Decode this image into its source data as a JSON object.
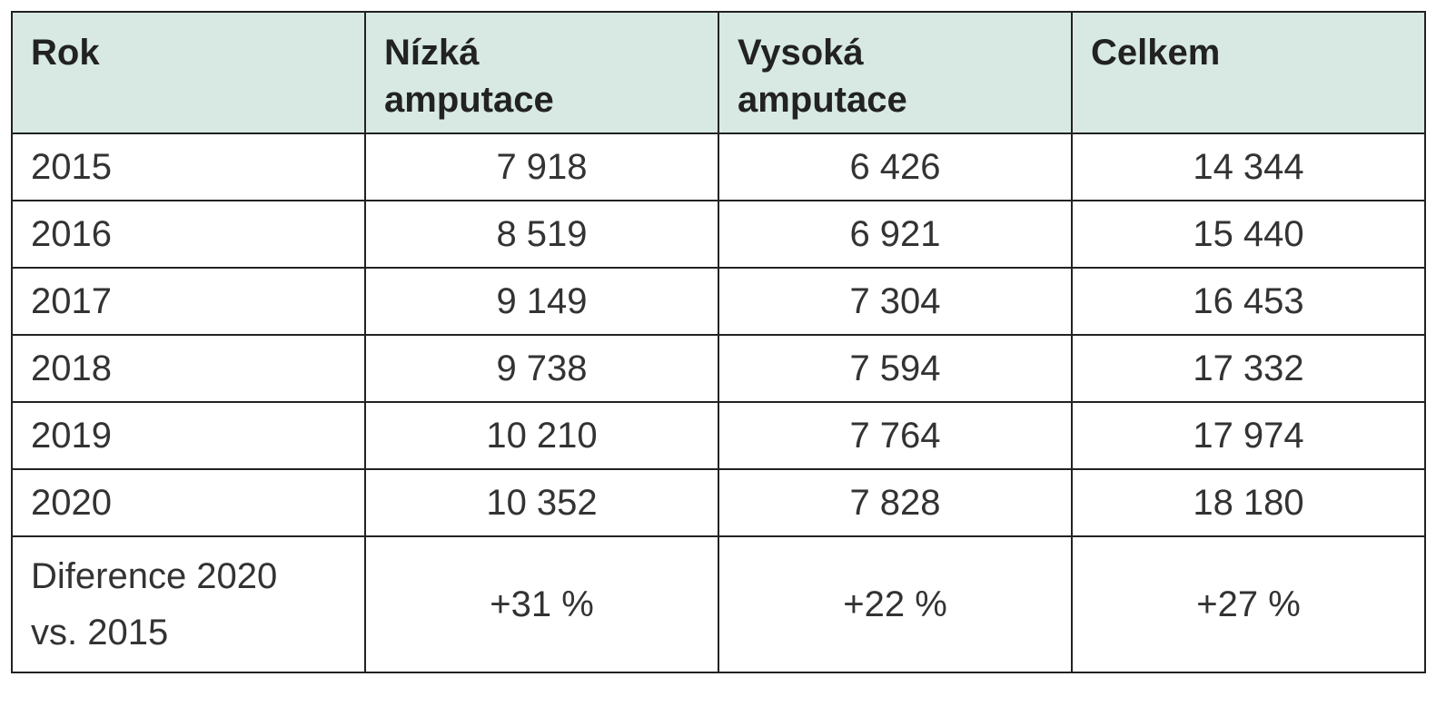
{
  "table": {
    "header": [
      "Rok",
      "Nízká amputace",
      "Vysoká amputace",
      "Celkem"
    ],
    "rows": [
      [
        "2015",
        "7 918",
        "6 426",
        "14 344"
      ],
      [
        "2016",
        "8 519",
        "6 921",
        "15 440"
      ],
      [
        "2017",
        "9 149",
        "7 304",
        "16 453"
      ],
      [
        "2018",
        "9 738",
        "7 594",
        "17 332"
      ],
      [
        "2019",
        "10 210",
        "7 764",
        "17 974"
      ],
      [
        "2020",
        "10 352",
        "7 828",
        "18 180"
      ],
      [
        "Diference 2020 vs. 2015",
        "+31 %",
        "+22 %",
        "+27 %"
      ]
    ]
  }
}
